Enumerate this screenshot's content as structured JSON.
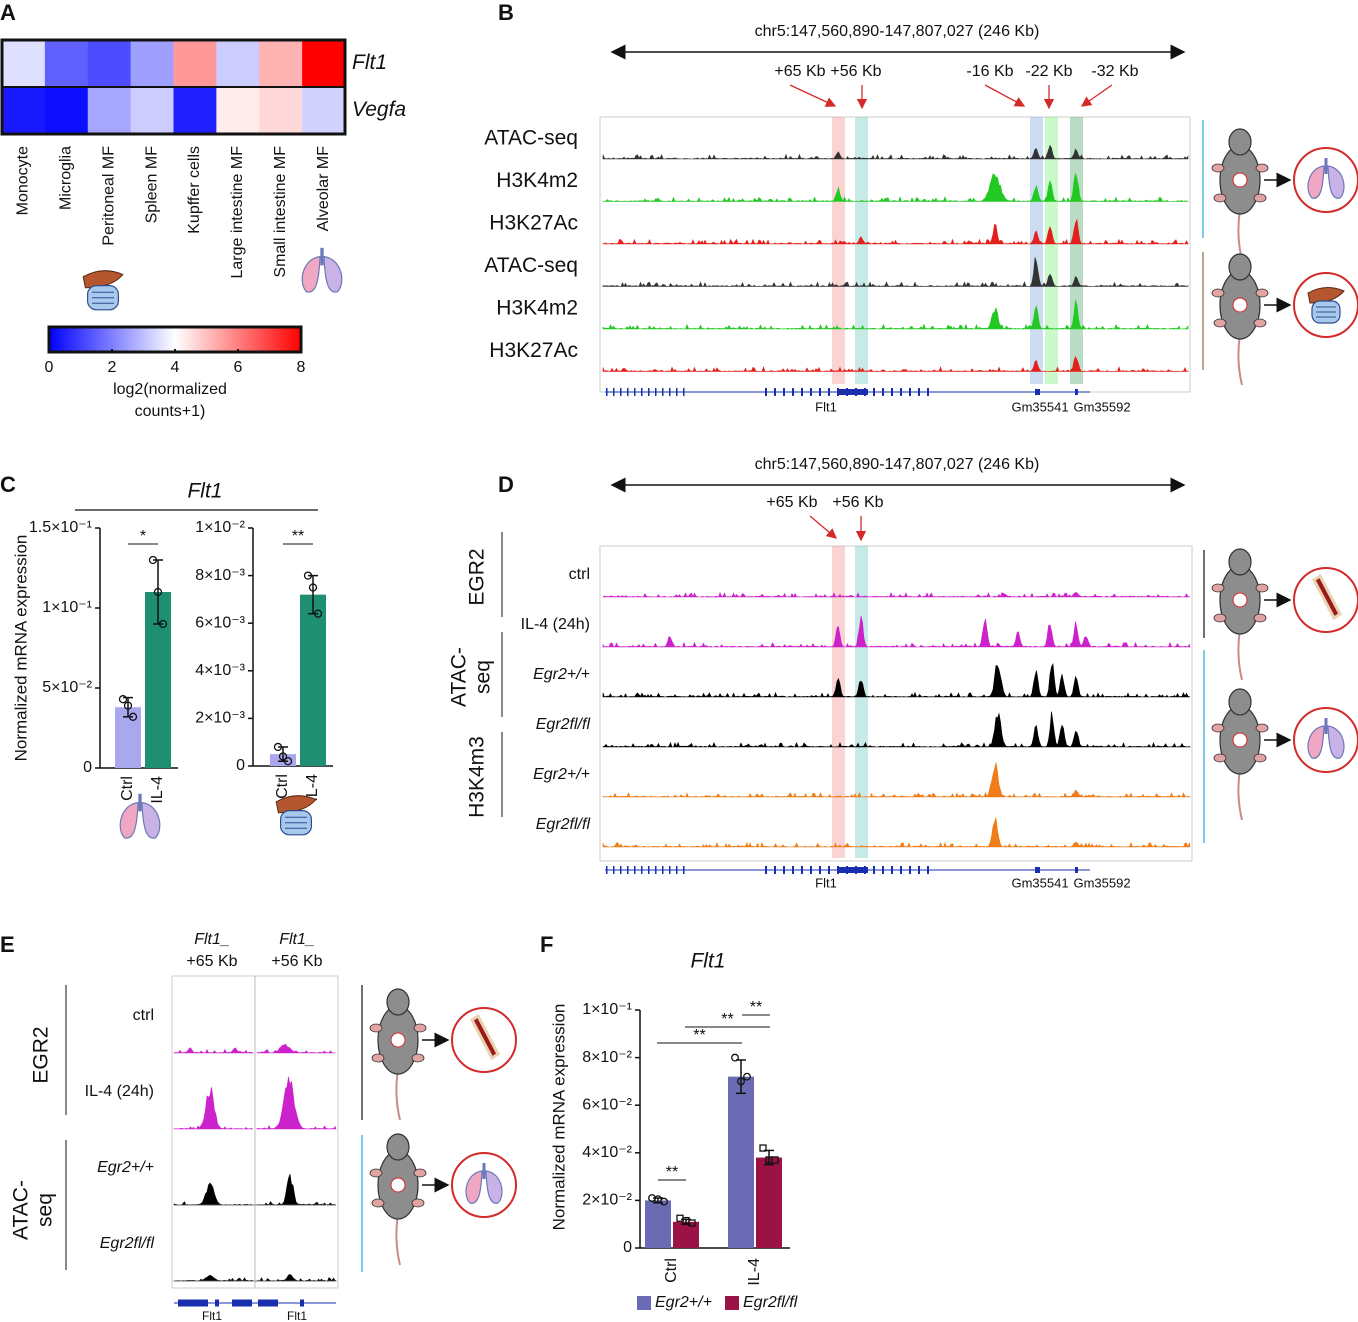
{
  "panel_labels": [
    "A",
    "B",
    "C",
    "D",
    "E",
    "F"
  ],
  "heatmap": {
    "rows": [
      "Flt1",
      "Vegfa"
    ],
    "columns": [
      "Monocyte",
      "Microglia",
      "Peritoneal MF",
      "Spleen MF",
      "Kupffer cells",
      "Large intestine MF",
      "Small intestine MF",
      "Alveolar MF"
    ],
    "values": [
      [
        3.5,
        1.5,
        1.2,
        2.5,
        5.6,
        3.2,
        5.2,
        8
      ],
      [
        0.4,
        0.2,
        2.6,
        3.2,
        0.5,
        4.3,
        4.6,
        3.3
      ]
    ],
    "colorbar": {
      "lim": [
        0,
        8
      ],
      "ticks": [
        0,
        2,
        4,
        6,
        8
      ],
      "label": [
        "log2(normalized",
        "counts+1)"
      ]
    }
  },
  "track_B": {
    "region": "chr5:147,560,890-147,807,027 (246 Kb)",
    "annotations": [
      "+65 Kb",
      "+56 Kb",
      "-16 Kb",
      "-22 Kb",
      "-32 Kb"
    ],
    "tracks": [
      {
        "name": "ATAC-seq",
        "color": "#333333"
      },
      {
        "name": "H3K4m2",
        "color": "#22c922"
      },
      {
        "name": "H3K27Ac",
        "color": "#e3201b"
      },
      {
        "name": "ATAC-seq",
        "color": "#333333"
      },
      {
        "name": "H3K4m2",
        "color": "#22c922"
      },
      {
        "name": "H3K27Ac",
        "color": "#e3201b"
      }
    ],
    "genes": [
      "Flt1",
      "Gm35541",
      "Gm35592"
    ]
  },
  "track_D": {
    "region": "chr5:147,560,890-147,807,027 (246 Kb)",
    "annotations": [
      "+65 Kb",
      "+56 Kb"
    ],
    "groups": [
      {
        "name": [
          "EGR2"
        ],
        "color": "#cc22cc"
      },
      {
        "name": [
          "ATAC-",
          "seq"
        ],
        "color": "#000000"
      },
      {
        "name": [
          "H3K4m3"
        ],
        "color": "#f07d1a"
      }
    ],
    "samples": [
      "ctrl",
      "IL-4 (24h)",
      "Egr2+/+",
      "Egr2fl/fl",
      "Egr2+/+",
      "Egr2fl/fl"
    ],
    "genes": [
      "Flt1",
      "Gm35541",
      "Gm35592"
    ]
  },
  "track_E": {
    "headers": [
      [
        "Flt1_",
        "+65 Kb"
      ],
      [
        "Flt1_",
        "+56 Kb"
      ]
    ],
    "groups": [
      {
        "name": [
          "EGR2"
        ],
        "color": "#cc22cc"
      },
      {
        "name": [
          "ATAC-",
          "seq"
        ],
        "color": "#000000"
      }
    ],
    "samples": [
      "ctrl",
      "IL-4 (24h)",
      "Egr2+/+",
      "Egr2fl/fl"
    ],
    "genes": [
      "Flt1",
      "Flt1"
    ]
  },
  "chart_data": [
    {
      "type": "bar",
      "title": "Flt1",
      "ylabel": "Normalized mRNA expression",
      "categories": [
        "Ctrl",
        "IL-4"
      ],
      "values": [
        0.038,
        0.11
      ],
      "errors": [
        0.006,
        0.02
      ],
      "points": [
        [
          0.043,
          0.039,
          0.032
        ],
        [
          0.13,
          0.11,
          0.09
        ]
      ],
      "colors": [
        "#a9a8ee",
        "#1f8f72"
      ],
      "ylim": [
        0,
        0.15
      ],
      "yticks": [
        0,
        {
          "value": 0.05,
          "label": "5×10⁻²"
        },
        {
          "value": 0.1,
          "label": "1×10⁻¹"
        },
        {
          "value": 0.15,
          "label": "1.5×10⁻¹"
        }
      ],
      "significance": [
        "*"
      ]
    },
    {
      "type": "bar",
      "categories": [
        "Ctrl",
        "IL-4"
      ],
      "values": [
        0.0005,
        0.0072
      ],
      "errors": [
        0.0003,
        0.0008
      ],
      "points": [
        [
          0.0008,
          0.0004,
          0.0002
        ],
        [
          0.008,
          0.0075,
          0.0064
        ]
      ],
      "colors": [
        "#a9a8ee",
        "#1f8f72"
      ],
      "ylim": [
        0,
        0.01
      ],
      "yticks": [
        0,
        {
          "value": 0.002,
          "label": "2×10⁻³"
        },
        {
          "value": 0.004,
          "label": "4×10⁻³"
        },
        {
          "value": 0.006,
          "label": "6×10⁻³"
        },
        {
          "value": 0.008,
          "label": "8×10⁻³"
        },
        {
          "value": 0.01,
          "label": "1×10⁻²"
        }
      ],
      "significance": [
        "**"
      ]
    },
    {
      "type": "grouped_bar",
      "title": "Flt1",
      "ylabel": "Normalized mRNA expression",
      "categories": [
        "Ctrl",
        "IL-4"
      ],
      "series": [
        {
          "name": "Egr2+/+",
          "color": "#6b6bb5",
          "values": [
            0.02,
            0.072
          ],
          "errors": [
            0.001,
            0.007
          ],
          "points": [
            [
              0.021,
              0.0205,
              0.0195
            ],
            [
              0.08,
              0.07,
              0.072
            ]
          ]
        },
        {
          "name": "Egr2fl/fl",
          "color": "#9c1247",
          "values": [
            0.011,
            0.038
          ],
          "errors": [
            0.001,
            0.003
          ],
          "points": [
            [
              0.0125,
              0.0115,
              0.0105
            ],
            [
              0.042,
              0.037,
              0.037
            ]
          ]
        }
      ],
      "ylim": [
        0,
        0.1
      ],
      "yticks": [
        0,
        {
          "value": 0.02,
          "label": "2×10⁻²"
        },
        {
          "value": 0.04,
          "label": "4×10⁻²"
        },
        {
          "value": 0.06,
          "label": "6×10⁻²"
        },
        {
          "value": 0.08,
          "label": "8×10⁻²"
        },
        {
          "value": 0.1,
          "label": "1×10⁻¹"
        }
      ],
      "significance": [
        "**",
        "**",
        "**",
        "**"
      ]
    }
  ]
}
